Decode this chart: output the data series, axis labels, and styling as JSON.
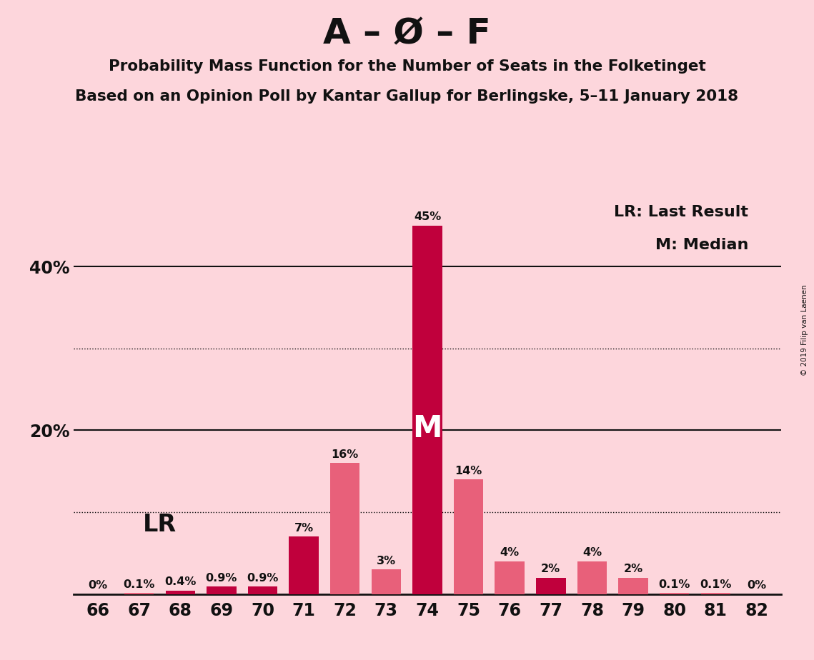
{
  "title_main": "A – Ø – F",
  "subtitle1": "Probability Mass Function for the Number of Seats in the Folketinget",
  "subtitle2": "Based on an Opinion Poll by Kantar Gallup for Berlingske, 5–11 January 2018",
  "copyright": "© 2019 Filip van Laenen",
  "categories": [
    66,
    67,
    68,
    69,
    70,
    71,
    72,
    73,
    74,
    75,
    76,
    77,
    78,
    79,
    80,
    81,
    82
  ],
  "values": [
    0.0,
    0.1,
    0.4,
    0.9,
    0.9,
    7.0,
    16.0,
    3.0,
    45.0,
    14.0,
    4.0,
    2.0,
    4.0,
    2.0,
    0.1,
    0.1,
    0.0
  ],
  "labels": [
    "0%",
    "0.1%",
    "0.4%",
    "0.9%",
    "0.9%",
    "7%",
    "16%",
    "3%",
    "45%",
    "14%",
    "4%",
    "2%",
    "4%",
    "2%",
    "0.1%",
    "0.1%",
    "0%"
  ],
  "colors": [
    "#e8607a",
    "#e8607a",
    "#c0003c",
    "#c0003c",
    "#c0003c",
    "#c0003c",
    "#e8607a",
    "#e8607a",
    "#c0003c",
    "#e8607a",
    "#e8607a",
    "#c0003c",
    "#e8607a",
    "#e8607a",
    "#e8607a",
    "#e8607a",
    "#e8607a"
  ],
  "median_bar_idx": 8,
  "lr_bar_idx": 2,
  "background_color": "#fdd6dc",
  "axis_color": "#111111",
  "text_color": "#111111",
  "legend_lr": "LR: Last Result",
  "legend_m": "M: Median",
  "ylim": [
    0,
    50
  ]
}
